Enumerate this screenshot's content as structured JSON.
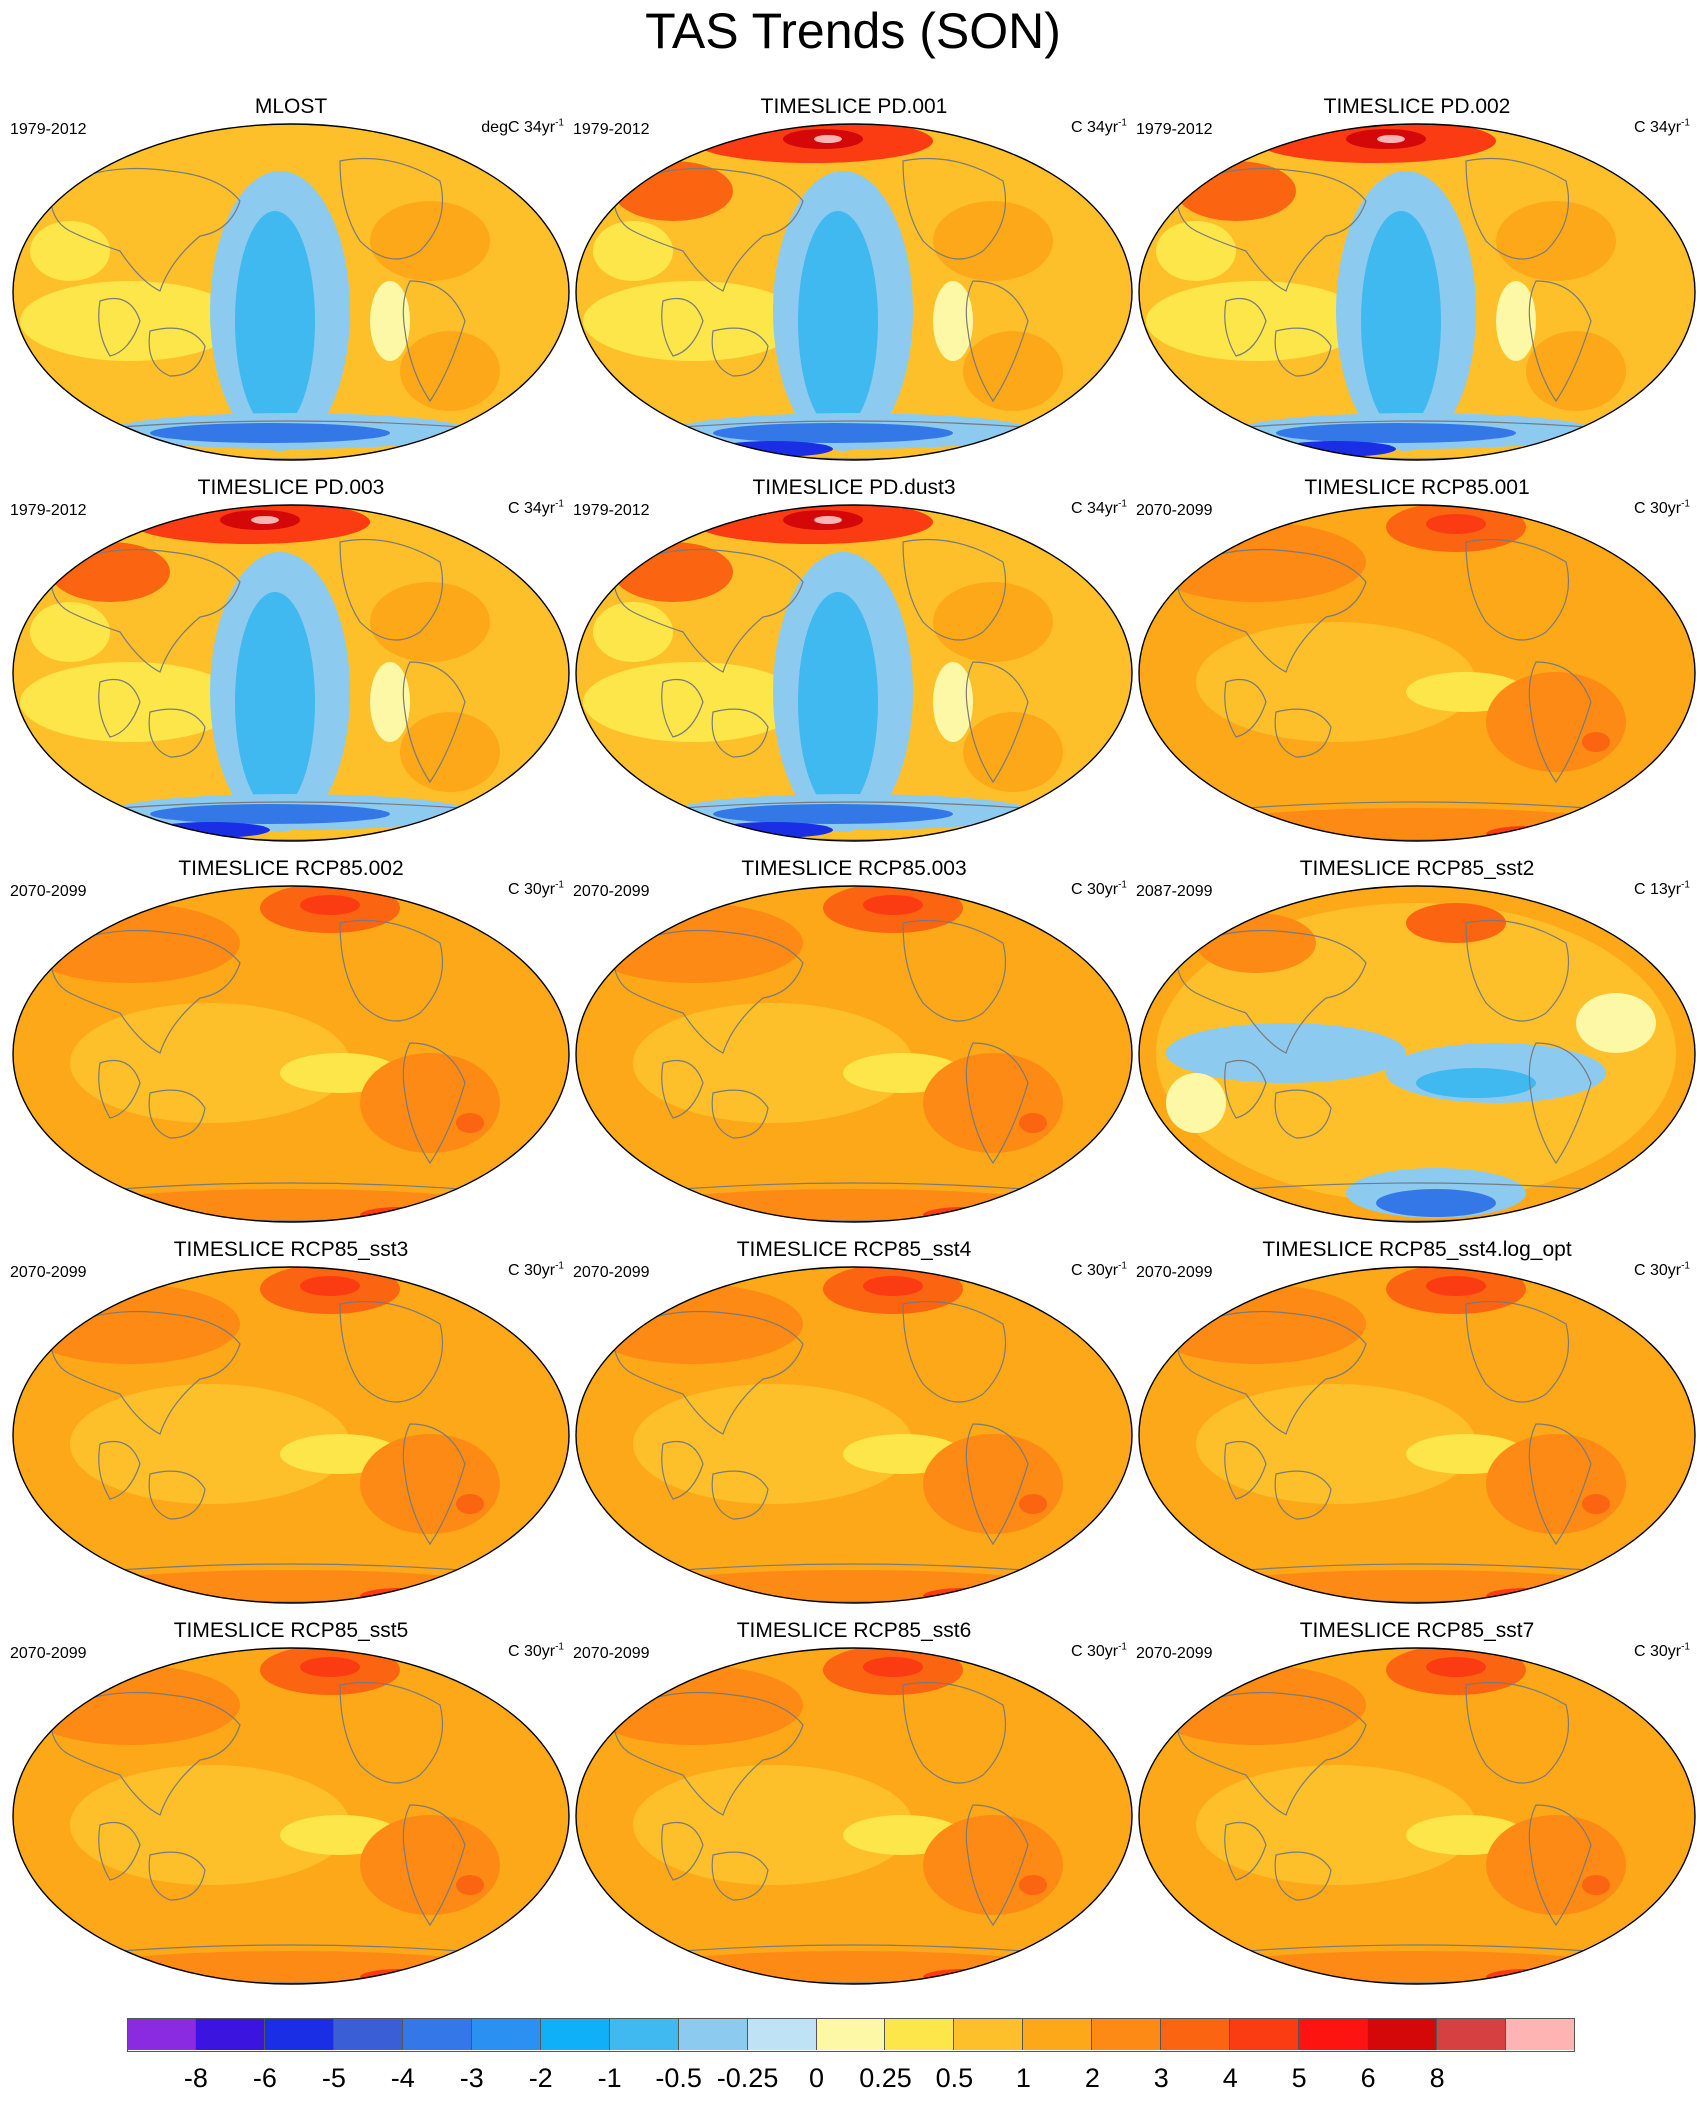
{
  "title": "TAS Trends (SON)",
  "panels": [
    {
      "title": "MLOST",
      "period": "1979-2012",
      "unit": "degC 34yr",
      "unit_exp": "-1",
      "pattern": "obs"
    },
    {
      "title": "TIMESLICE PD.001",
      "period": "1979-2012",
      "unit": "C 34yr",
      "unit_exp": "-1",
      "pattern": "pd"
    },
    {
      "title": "TIMESLICE PD.002",
      "period": "1979-2012",
      "unit": "C 34yr",
      "unit_exp": "-1",
      "pattern": "pd"
    },
    {
      "title": "TIMESLICE PD.003",
      "period": "1979-2012",
      "unit": "C 34yr",
      "unit_exp": "-1",
      "pattern": "pd"
    },
    {
      "title": "TIMESLICE PD.dust3",
      "period": "1979-2012",
      "unit": "C 34yr",
      "unit_exp": "-1",
      "pattern": "pd"
    },
    {
      "title": "TIMESLICE RCP85.001",
      "period": "2070-2099",
      "unit": "C 30yr",
      "unit_exp": "-1",
      "pattern": "future"
    },
    {
      "title": "TIMESLICE RCP85.002",
      "period": "2070-2099",
      "unit": "C 30yr",
      "unit_exp": "-1",
      "pattern": "future"
    },
    {
      "title": "TIMESLICE RCP85.003",
      "period": "2070-2099",
      "unit": "C 30yr",
      "unit_exp": "-1",
      "pattern": "future"
    },
    {
      "title": "TIMESLICE RCP85_sst2",
      "period": "2087-2099",
      "unit": "C 13yr",
      "unit_exp": "-1",
      "pattern": "short"
    },
    {
      "title": "TIMESLICE RCP85_sst3",
      "period": "2070-2099",
      "unit": "C 30yr",
      "unit_exp": "-1",
      "pattern": "future"
    },
    {
      "title": "TIMESLICE RCP85_sst4",
      "period": "2070-2099",
      "unit": "C 30yr",
      "unit_exp": "-1",
      "pattern": "future"
    },
    {
      "title": "TIMESLICE RCP85_sst4.log_opt",
      "period": "2070-2099",
      "unit": "C 30yr",
      "unit_exp": "-1",
      "pattern": "future"
    },
    {
      "title": "TIMESLICE RCP85_sst5",
      "period": "2070-2099",
      "unit": "C 30yr",
      "unit_exp": "-1",
      "pattern": "future"
    },
    {
      "title": "TIMESLICE RCP85_sst6",
      "period": "2070-2099",
      "unit": "C 30yr",
      "unit_exp": "-1",
      "pattern": "future"
    },
    {
      "title": "TIMESLICE RCP85_sst7",
      "period": "2070-2099",
      "unit": "C 30yr",
      "unit_exp": "-1",
      "pattern": "future"
    }
  ],
  "colorbar": {
    "colors": [
      "#8a2be2",
      "#3b14e0",
      "#1a2ee6",
      "#3a5ed6",
      "#3478e8",
      "#2a90f2",
      "#10b0f8",
      "#40b8f0",
      "#8ccaf0",
      "#c0e2f5",
      "#fdf8a6",
      "#fde64a",
      "#fdc02a",
      "#fda818",
      "#fd8a14",
      "#fb6410",
      "#fb3c12",
      "#fd1410",
      "#d40808",
      "#d64040",
      "#ffb4b4"
    ],
    "labels": [
      "-8",
      "-6",
      "-5",
      "-4",
      "-3",
      "-2",
      "-1",
      "-0.5",
      "-0.25",
      "0",
      "0.25",
      "0.5",
      "1",
      "2",
      "3",
      "4",
      "5",
      "6",
      "8"
    ]
  }
}
